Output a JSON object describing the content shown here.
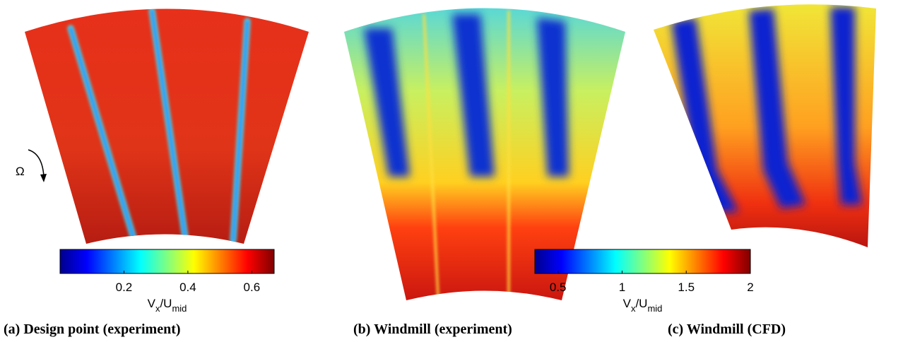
{
  "figure": {
    "rotation_symbol": "Ω",
    "colorbars": [
      {
        "lim": [
          0.0,
          0.67
        ],
        "ticks": [
          0.2,
          0.4,
          0.6
        ],
        "label": {
          "main": "V",
          "sub1": "x",
          "mid": "/U",
          "sub2": "mid"
        }
      },
      {
        "lim": [
          0.32,
          2
        ],
        "ticks": [
          0.5,
          1,
          1.5,
          2
        ],
        "label": {
          "main": "V",
          "sub1": "x",
          "mid": "/U",
          "sub2": "mid"
        }
      }
    ],
    "captions": [
      "(a) Design point (experiment)",
      "(b) Windmill (experiment)",
      "(c) Windmill (CFD)"
    ]
  }
}
